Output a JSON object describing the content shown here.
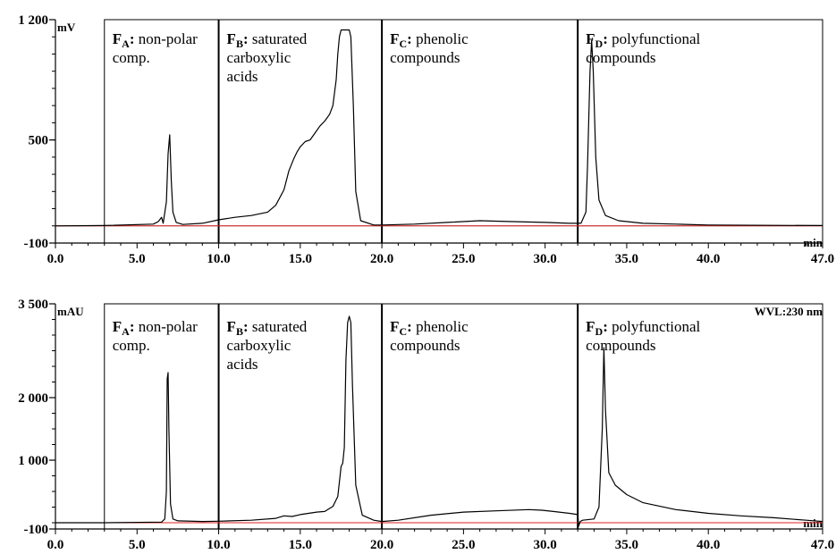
{
  "colors": {
    "trace": "#000000",
    "baseline": "#e02020",
    "frame": "#000000"
  },
  "fraction_labels": [
    {
      "letter": "F",
      "sub": "A",
      "rest": ": non-polar",
      "line2": "comp.",
      "line3": ""
    },
    {
      "letter": "F",
      "sub": "B",
      "rest": ": saturated",
      "line2": "carboxylic",
      "line3": "acids"
    },
    {
      "letter": "F",
      "sub": "C",
      "rest": ": phenolic",
      "line2": "compounds",
      "line3": ""
    },
    {
      "letter": "F",
      "sub": "D",
      "rest": ": polyfunctional",
      "line2": "compounds",
      "line3": ""
    }
  ],
  "chart_data": [
    {
      "type": "line",
      "ylabel": "mV",
      "xlabel": "min",
      "annotation": "",
      "xlim": [
        0,
        47
      ],
      "ylim": [
        -100,
        1200
      ],
      "x_ticks": [
        "0.0",
        "5.0",
        "10.0",
        "15.0",
        "20.0",
        "25.0",
        "30.0",
        "35.0",
        "40.0",
        "47.0"
      ],
      "x_tick_values": [
        0,
        5,
        10,
        15,
        20,
        25,
        30,
        35,
        40,
        47
      ],
      "y_ticks": [
        "-100",
        "500",
        "1 200"
      ],
      "y_tick_values": [
        -100,
        500,
        1200
      ],
      "fraction_boundaries": [
        3,
        10,
        20,
        32
      ],
      "baseline": 0,
      "series": [
        {
          "x": [
            0,
            3,
            6.0,
            6.3,
            6.5,
            6.6,
            6.8,
            6.9,
            7.0,
            7.1,
            7.2,
            7.4,
            7.8,
            9,
            10,
            11,
            12,
            13,
            13.5,
            14,
            14.3,
            14.6,
            14.8,
            15.0,
            15.3,
            15.6,
            15.9,
            16.2,
            16.5,
            16.8,
            17.0,
            17.2,
            17.3,
            17.4,
            17.5,
            17.9,
            18.0,
            18.1,
            18.25,
            18.4,
            18.7,
            19.5,
            20,
            22,
            24,
            26,
            28,
            30,
            31.5,
            32.2,
            32.5,
            32.6,
            32.75,
            32.85,
            32.95,
            33.1,
            33.3,
            33.7,
            34.5,
            36,
            38,
            40,
            44,
            47
          ],
          "y": [
            0,
            2,
            10,
            25,
            50,
            15,
            140,
            420,
            530,
            260,
            80,
            20,
            8,
            15,
            35,
            50,
            60,
            80,
            120,
            210,
            320,
            390,
            430,
            460,
            490,
            500,
            540,
            580,
            610,
            650,
            700,
            850,
            1000,
            1100,
            1140,
            1140,
            1140,
            1100,
            700,
            200,
            30,
            5,
            5,
            10,
            20,
            30,
            25,
            20,
            15,
            15,
            80,
            350,
            900,
            1080,
            900,
            400,
            150,
            60,
            30,
            15,
            10,
            5,
            3,
            2
          ]
        }
      ]
    },
    {
      "type": "line",
      "ylabel": "mAU",
      "xlabel": "min",
      "annotation": "WVL:230 nm",
      "xlim": [
        0,
        47
      ],
      "ylim": [
        -100,
        3500
      ],
      "x_ticks": [
        "0.0",
        "5.0",
        "10.0",
        "15.0",
        "20.0",
        "25.0",
        "30.0",
        "35.0",
        "40.0",
        "47.0"
      ],
      "x_tick_values": [
        0,
        5,
        10,
        15,
        20,
        25,
        30,
        35,
        40,
        47
      ],
      "y_ticks": [
        "-100",
        "1 000",
        "2 000",
        "3 500"
      ],
      "y_tick_values": [
        -100,
        1000,
        2000,
        3500
      ],
      "fraction_boundaries": [
        3,
        10,
        20,
        32
      ],
      "baseline": 0,
      "series": [
        {
          "x": [
            0,
            3,
            6.5,
            6.7,
            6.8,
            6.85,
            6.9,
            6.95,
            7.05,
            7.2,
            7.5,
            9,
            10,
            12,
            13.5,
            14,
            14.5,
            15,
            15.5,
            16,
            16.5,
            17,
            17.3,
            17.5,
            17.6,
            17.7,
            17.8,
            17.9,
            18.0,
            18.1,
            18.2,
            18.4,
            18.8,
            19.5,
            20,
            21,
            23,
            25,
            27,
            29,
            29.8,
            30.5,
            31.5,
            32.0,
            32.05,
            32.15,
            32.3,
            33.0,
            33.3,
            33.5,
            33.6,
            33.7,
            33.9,
            34.3,
            35,
            36,
            38,
            40,
            42,
            44,
            46,
            47
          ],
          "y": [
            0,
            0,
            10,
            60,
            500,
            2300,
            2400,
            1500,
            300,
            60,
            30,
            20,
            25,
            40,
            70,
            110,
            100,
            130,
            150,
            170,
            180,
            260,
            420,
            900,
            950,
            1200,
            2600,
            3200,
            3300,
            3200,
            2200,
            600,
            120,
            40,
            20,
            40,
            120,
            170,
            190,
            210,
            200,
            180,
            150,
            130,
            -60,
            20,
            40,
            60,
            250,
            1500,
            2800,
            1800,
            800,
            600,
            450,
            320,
            210,
            150,
            110,
            80,
            40,
            20
          ]
        }
      ]
    }
  ]
}
